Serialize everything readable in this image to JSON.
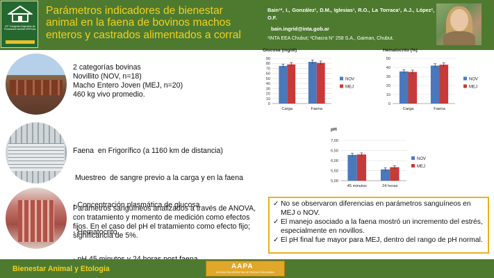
{
  "header": {
    "title": "Parámetros indicadores de bienestar animal en la faena de bovinos machos enteros y castrados alimentados a corral",
    "authors": "Bain¹*, I., González¹, D.M., Iglesias¹, R.O., La Torraca¹, A.J., López², O.F.",
    "email": "bain.ingrid@inta.gob.ar",
    "affiliation": "¹INTA EEA Chubut; ²Chacra N° 258 S.A., Gaiman, Chubut.",
    "logo_text": "43° Congreso Argentino de Producción Animal VIRTUAL"
  },
  "section1": {
    "lines": [
      "2 categorías bovinas",
      "Novillito (NOV, n=18)",
      "Macho Entero Joven (MEJ, n=20)",
      "460 kg vivo promedio."
    ]
  },
  "section2": {
    "lines": [
      "Faena  en Frigorífico (a 1160 km de distancia)",
      " Muestreo  de sangre previo a la carga y en la faena",
      "- Concentración plasmática de glucosa",
      "- Hematocrito",
      "- pH 45 minutos y 24 horas post faena"
    ]
  },
  "section3": {
    "text": "Parámetros sanguíneos analizados a través de ANOVA, con tratamiento y momento de medición como efectos fijos. En el caso del pH el tratamiento como efecto fijo; significancia de 5%."
  },
  "conclusions": [
    "No se observaron diferencias en parámetros sanguíneos en MEJ o NOV.",
    "El manejo asociado a la faena mostró un incremento del estrés, especialmente en novillos.",
    "El pH final fue mayor para MEJ, dentro del rango de pH normal."
  ],
  "footer": {
    "label": "Bienestar Animal y Etología",
    "logo_mark": "AAPA",
    "logo_sub": "ASOCIACIÓN ARGENTINA DE PRODUCCIÓN ANIMAL"
  },
  "colors": {
    "header_green": "#4e7a30",
    "title_yellow": "#f2d21e",
    "nov_blue": "#4a78bd",
    "mej_red": "#c63b3a",
    "conclusion_border": "#e8b21d"
  },
  "chart_data": [
    {
      "type": "bar",
      "title": "Glucosa  (mg/dl)",
      "categories": [
        "Carga",
        "Faena"
      ],
      "series": [
        {
          "name": "NOV",
          "values": [
            75,
            83
          ]
        },
        {
          "name": "MEJ",
          "values": [
            78,
            81
          ]
        }
      ],
      "ylim": [
        0,
        90
      ],
      "yticks": [
        0,
        10,
        20,
        30,
        40,
        50,
        60,
        70,
        80,
        90
      ],
      "legend": "right"
    },
    {
      "type": "bar",
      "title": "Hematocrito (%)",
      "categories": [
        "Carga",
        "Faena"
      ],
      "series": [
        {
          "name": "NOV",
          "values": [
            35.5,
            42
          ]
        },
        {
          "name": "MEJ",
          "values": [
            35,
            43
          ]
        }
      ],
      "ylim": [
        0,
        50
      ],
      "yticks": [
        0,
        10,
        20,
        30,
        40,
        50
      ],
      "legend": "right"
    },
    {
      "type": "bar",
      "title": "pH",
      "categories": [
        "45 minutos",
        "24 horas"
      ],
      "series": [
        {
          "name": "NOV",
          "values": [
            6.28,
            5.56
          ]
        },
        {
          "name": "MEJ",
          "values": [
            6.3,
            5.67
          ]
        }
      ],
      "ylim": [
        5.0,
        7.0
      ],
      "yticks": [
        "5,00",
        "5,50",
        "6,00",
        "6,50",
        "7,00"
      ],
      "legend": "right"
    }
  ]
}
